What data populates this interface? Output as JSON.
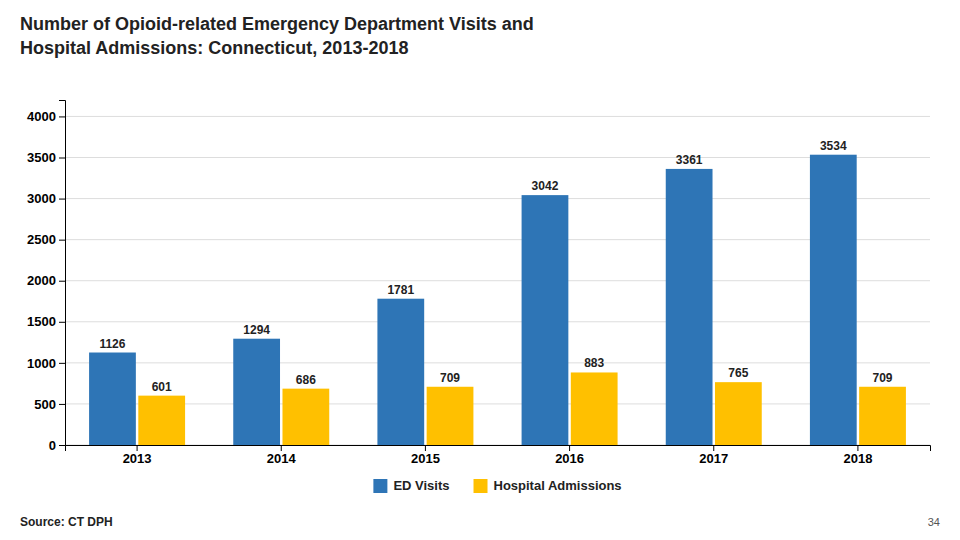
{
  "chart_data": {
    "type": "bar",
    "title": [
      "Number of Opioid-related Emergency Department Visits and",
      "Hospital Admissions: Connecticut, 2013-2018"
    ],
    "categories": [
      "2013",
      "2014",
      "2015",
      "2016",
      "2017",
      "2018"
    ],
    "series": [
      {
        "name": "ED Visits",
        "color": "#2E75B6",
        "values": [
          1126,
          1294,
          1781,
          3042,
          3361,
          3534
        ]
      },
      {
        "name": "Hospital Admissions",
        "color": "#FFC000",
        "values": [
          601,
          686,
          709,
          883,
          765,
          709
        ]
      }
    ],
    "ylim": [
      0,
      4200
    ],
    "yticks": [
      0,
      500,
      1000,
      1500,
      2000,
      2500,
      3000,
      3500,
      4000
    ],
    "grid": true,
    "legend": "bottom",
    "data_labels": true,
    "annotations": [
      "Source: CT DPH",
      "34"
    ]
  }
}
